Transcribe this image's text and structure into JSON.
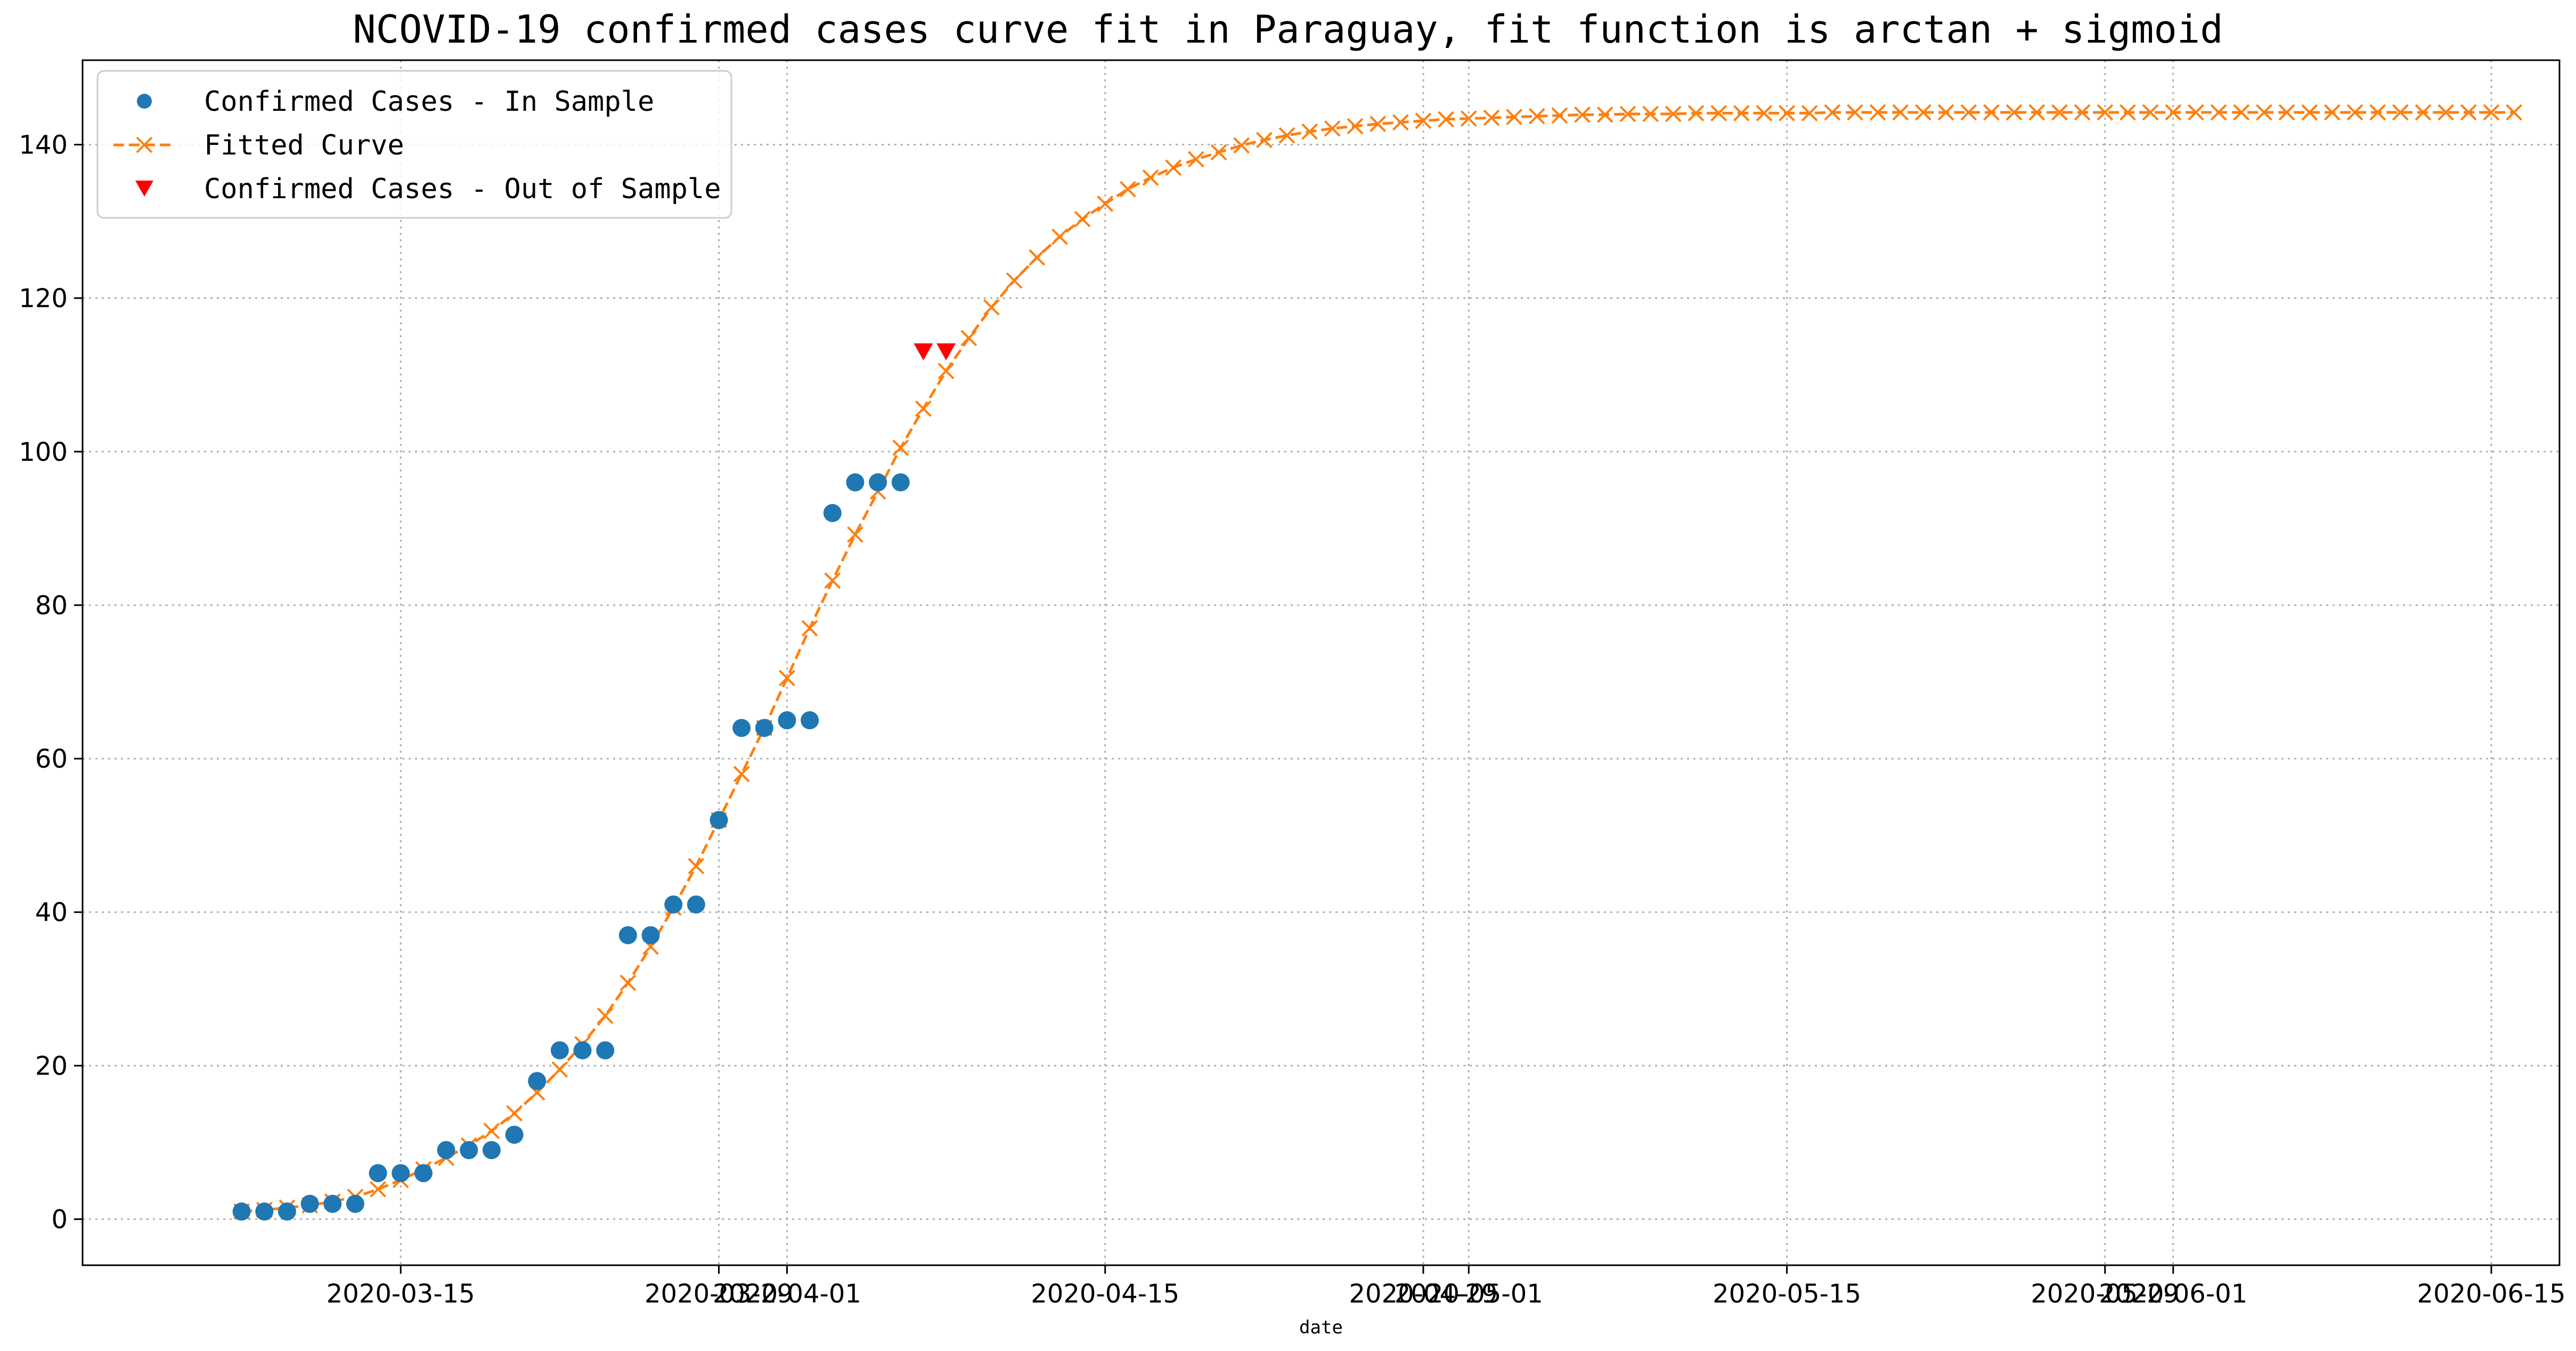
{
  "chart_data": {
    "type": "line",
    "title": "NCOVID-19 confirmed cases curve fit in Paraguay, fit function is arctan + sigmoid",
    "xlabel": "date",
    "ylabel": "",
    "grid": true,
    "legend_position": "top-left",
    "xlim": [
      "2020-03-01",
      "2020-06-18"
    ],
    "ylim": [
      -6,
      151
    ],
    "x_ticks": [
      {
        "date": "2020-03-15",
        "label": "2020-03-15"
      },
      {
        "date": "2020-03-29",
        "label": "2020-03-29"
      },
      {
        "date": "2020-04-01",
        "label": "2020-04-01"
      },
      {
        "date": "2020-04-15",
        "label": "2020-04-15"
      },
      {
        "date": "2020-04-29",
        "label": "2020-04-29"
      },
      {
        "date": "2020-05-01",
        "label": "2020-05-01"
      },
      {
        "date": "2020-05-15",
        "label": "2020-05-15"
      },
      {
        "date": "2020-05-29",
        "label": "2020-05-29"
      },
      {
        "date": "2020-06-01",
        "label": "2020-06-01"
      },
      {
        "date": "2020-06-15",
        "label": "2020-06-15"
      }
    ],
    "y_ticks": [
      0,
      20,
      40,
      60,
      80,
      100,
      120,
      140
    ],
    "series": [
      {
        "name": "Confirmed Cases - In Sample",
        "marker": "circle",
        "color": "#1f77b4",
        "x": [
          "2020-03-08",
          "2020-03-09",
          "2020-03-10",
          "2020-03-11",
          "2020-03-12",
          "2020-03-13",
          "2020-03-14",
          "2020-03-15",
          "2020-03-16",
          "2020-03-17",
          "2020-03-18",
          "2020-03-19",
          "2020-03-20",
          "2020-03-21",
          "2020-03-22",
          "2020-03-23",
          "2020-03-24",
          "2020-03-25",
          "2020-03-26",
          "2020-03-27",
          "2020-03-28",
          "2020-03-29",
          "2020-03-30",
          "2020-03-31",
          "2020-04-01",
          "2020-04-02",
          "2020-04-03",
          "2020-04-04",
          "2020-04-05",
          "2020-04-06"
        ],
        "y": [
          1,
          1,
          1,
          2,
          2,
          2,
          6,
          6,
          6,
          9,
          9,
          9,
          11,
          18,
          22,
          22,
          22,
          37,
          37,
          41,
          41,
          52,
          64,
          64,
          65,
          65,
          92,
          96,
          96,
          96
        ]
      },
      {
        "name": "Fitted Curve",
        "line": "dashed",
        "marker": "x",
        "color": "#ff7f0e",
        "x_start": "2020-03-08",
        "x_step_days": 1,
        "y": [
          1.0,
          1.2,
          1.5,
          1.8,
          2.3,
          2.9,
          3.9,
          5.1,
          6.5,
          8.0,
          9.6,
          11.5,
          13.8,
          16.5,
          19.5,
          22.8,
          26.5,
          30.8,
          35.5,
          40.6,
          46.0,
          52.0,
          58.0,
          64.0,
          70.5,
          77.0,
          83.2,
          89.2,
          94.8,
          100.5,
          105.6,
          110.5,
          114.8,
          118.8,
          122.3,
          125.3,
          128.0,
          130.3,
          132.3,
          134.2,
          135.7,
          137.0,
          138.1,
          139.0,
          139.9,
          140.6,
          141.2,
          141.7,
          142.1,
          142.4,
          142.7,
          142.9,
          143.1,
          143.3,
          143.4,
          143.5,
          143.6,
          143.7,
          143.8,
          143.9,
          143.9,
          144.0,
          144.0,
          144.0,
          144.1,
          144.1,
          144.1,
          144.1,
          144.1,
          144.1,
          144.2,
          144.2,
          144.2,
          144.2,
          144.2,
          144.2,
          144.2,
          144.2,
          144.2,
          144.2,
          144.2,
          144.2,
          144.2,
          144.2,
          144.2,
          144.2,
          144.2,
          144.2,
          144.2,
          144.2,
          144.2,
          144.2,
          144.2,
          144.2,
          144.2,
          144.2,
          144.2,
          144.2,
          144.2,
          144.2,
          144.2
        ]
      },
      {
        "name": "Confirmed Cases - Out of Sample",
        "marker": "triangle-down",
        "color": "#ff0000",
        "x": [
          "2020-04-07",
          "2020-04-08"
        ],
        "y": [
          113,
          113
        ]
      }
    ]
  }
}
